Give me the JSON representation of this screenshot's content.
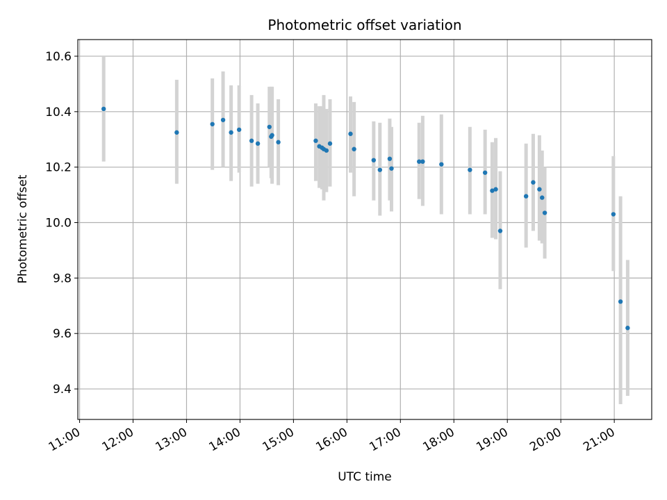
{
  "chart_data": {
    "type": "scatter",
    "title": "Photometric offset variation",
    "xlabel": "UTC time",
    "ylabel": "Photometric offset",
    "xlim": [
      "10:58",
      "21:42"
    ],
    "ylim": [
      9.29,
      10.66
    ],
    "grid": true,
    "x_ticks": [
      "11:00",
      "12:00",
      "13:00",
      "14:00",
      "15:00",
      "16:00",
      "17:00",
      "18:00",
      "19:00",
      "20:00",
      "21:00"
    ],
    "y_ticks": [
      9.4,
      9.6,
      9.8,
      10.0,
      10.2,
      10.4,
      10.6
    ],
    "y_tick_labels": [
      "9.4",
      "9.6",
      "9.8",
      "10.0",
      "10.2",
      "10.4",
      "10.6"
    ],
    "colors": {
      "point": "#1f77b4",
      "errorbar": "#d3d3d3",
      "grid": "#b0b0b0"
    },
    "points": [
      {
        "x": "11:27",
        "y": 10.41,
        "lo": 10.22,
        "hi": 10.6
      },
      {
        "x": "12:49",
        "y": 10.325,
        "lo": 10.14,
        "hi": 10.515
      },
      {
        "x": "13:29",
        "y": 10.355,
        "lo": 10.19,
        "hi": 10.52
      },
      {
        "x": "13:41",
        "y": 10.37,
        "lo": 10.2,
        "hi": 10.545
      },
      {
        "x": "13:50",
        "y": 10.325,
        "lo": 10.15,
        "hi": 10.495
      },
      {
        "x": "13:59",
        "y": 10.335,
        "lo": 10.18,
        "hi": 10.495
      },
      {
        "x": "14:13",
        "y": 10.295,
        "lo": 10.13,
        "hi": 10.46
      },
      {
        "x": "14:20",
        "y": 10.285,
        "lo": 10.14,
        "hi": 10.43
      },
      {
        "x": "14:33",
        "y": 10.345,
        "lo": 10.2,
        "hi": 10.49
      },
      {
        "x": "14:35",
        "y": 10.31,
        "lo": 10.16,
        "hi": 10.49
      },
      {
        "x": "14:36",
        "y": 10.315,
        "lo": 10.14,
        "hi": 10.49
      },
      {
        "x": "14:43",
        "y": 10.29,
        "lo": 10.135,
        "hi": 10.445
      },
      {
        "x": "15:25",
        "y": 10.295,
        "lo": 10.15,
        "hi": 10.43
      },
      {
        "x": "15:29",
        "y": 10.275,
        "lo": 10.125,
        "hi": 10.42
      },
      {
        "x": "15:32",
        "y": 10.27,
        "lo": 10.12,
        "hi": 10.42
      },
      {
        "x": "15:34",
        "y": 10.265,
        "lo": 10.08,
        "hi": 10.46
      },
      {
        "x": "15:37",
        "y": 10.26,
        "lo": 10.11,
        "hi": 10.41
      },
      {
        "x": "15:41",
        "y": 10.285,
        "lo": 10.13,
        "hi": 10.445
      },
      {
        "x": "16:04",
        "y": 10.32,
        "lo": 10.18,
        "hi": 10.455
      },
      {
        "x": "16:08",
        "y": 10.265,
        "lo": 10.095,
        "hi": 10.435
      },
      {
        "x": "16:30",
        "y": 10.225,
        "lo": 10.08,
        "hi": 10.365
      },
      {
        "x": "16:37",
        "y": 10.19,
        "lo": 10.025,
        "hi": 10.36
      },
      {
        "x": "16:48",
        "y": 10.23,
        "lo": 10.08,
        "hi": 10.375
      },
      {
        "x": "16:50",
        "y": 10.195,
        "lo": 10.04,
        "hi": 10.345
      },
      {
        "x": "17:21",
        "y": 10.22,
        "lo": 10.085,
        "hi": 10.36
      },
      {
        "x": "17:25",
        "y": 10.22,
        "lo": 10.06,
        "hi": 10.385
      },
      {
        "x": "17:46",
        "y": 10.21,
        "lo": 10.03,
        "hi": 10.39
      },
      {
        "x": "18:18",
        "y": 10.19,
        "lo": 10.03,
        "hi": 10.345
      },
      {
        "x": "18:35",
        "y": 10.18,
        "lo": 10.03,
        "hi": 10.335
      },
      {
        "x": "18:43",
        "y": 10.115,
        "lo": 9.945,
        "hi": 10.29
      },
      {
        "x": "18:47",
        "y": 10.12,
        "lo": 9.94,
        "hi": 10.305
      },
      {
        "x": "18:52",
        "y": 9.97,
        "lo": 9.76,
        "hi": 10.185
      },
      {
        "x": "19:21",
        "y": 10.095,
        "lo": 9.91,
        "hi": 10.285
      },
      {
        "x": "19:29",
        "y": 10.145,
        "lo": 9.97,
        "hi": 10.32
      },
      {
        "x": "19:36",
        "y": 10.12,
        "lo": 9.935,
        "hi": 10.315
      },
      {
        "x": "19:39",
        "y": 10.09,
        "lo": 9.925,
        "hi": 10.26
      },
      {
        "x": "19:42",
        "y": 10.035,
        "lo": 9.87,
        "hi": 10.2
      },
      {
        "x": "20:59",
        "y": 10.03,
        "lo": 9.825,
        "hi": 10.24
      },
      {
        "x": "21:07",
        "y": 9.715,
        "lo": 9.345,
        "hi": 10.095
      },
      {
        "x": "21:15",
        "y": 9.62,
        "lo": 9.375,
        "hi": 9.865
      }
    ]
  }
}
